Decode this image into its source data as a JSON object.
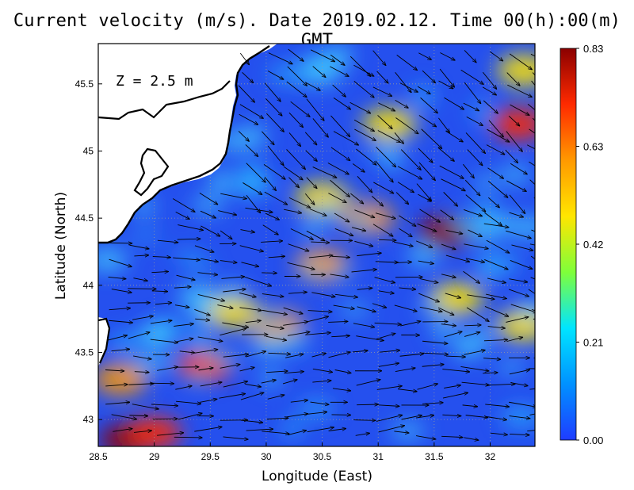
{
  "title": "Current velocity (m/s). Date 2019.02.12. Time 00(h):00(m) GMT",
  "depth_label": "Z = 2.5 m",
  "x_axis": {
    "label": "Longitude (East)",
    "ticks": [
      "28.5",
      "29",
      "29.5",
      "30",
      "30.5",
      "31",
      "31.5",
      "32"
    ]
  },
  "y_axis": {
    "label": "Latitude (North)",
    "ticks": [
      "43",
      "43.5",
      "44",
      "44.5",
      "45",
      "45.5"
    ]
  },
  "colorbar": {
    "ticks": [
      "0.83",
      "0.63",
      "0.42",
      "0.21",
      "0.00"
    ],
    "colors": [
      "#8b0000",
      "#ff2a00",
      "#ff9900",
      "#ffe600",
      "#7fff3a",
      "#00e5ff",
      "#0091ff",
      "#1f3cff"
    ]
  },
  "map_colors": {
    "land": "#ffffff",
    "coast": "#000000",
    "arrow": "#000000",
    "grid": "#9a9a9a"
  },
  "chart_data": {
    "type": "heatmap",
    "variable": "current velocity",
    "units": "m/s",
    "xlim": [
      28.5,
      32.4
    ],
    "ylim": [
      42.8,
      45.8
    ],
    "vmin": 0.0,
    "vmax": 0.83,
    "hotspots": [
      {
        "lon": 28.75,
        "lat": 42.85,
        "value": 0.8
      },
      {
        "lon": 29.0,
        "lat": 42.9,
        "value": 0.75
      },
      {
        "lon": 28.7,
        "lat": 43.3,
        "value": 0.55
      },
      {
        "lon": 29.45,
        "lat": 43.4,
        "value": 0.7
      },
      {
        "lon": 30.1,
        "lat": 43.7,
        "value": 0.6
      },
      {
        "lon": 30.5,
        "lat": 44.15,
        "value": 0.62
      },
      {
        "lon": 30.9,
        "lat": 44.5,
        "value": 0.55
      },
      {
        "lon": 31.6,
        "lat": 44.4,
        "value": 0.78
      },
      {
        "lon": 31.7,
        "lat": 43.9,
        "value": 0.5
      },
      {
        "lon": 32.25,
        "lat": 45.2,
        "value": 0.72
      },
      {
        "lon": 31.1,
        "lat": 45.2,
        "value": 0.5
      },
      {
        "lon": 32.3,
        "lat": 45.6,
        "value": 0.5
      },
      {
        "lon": 30.5,
        "lat": 44.65,
        "value": 0.45
      },
      {
        "lon": 29.7,
        "lat": 43.8,
        "value": 0.5
      },
      {
        "lon": 32.3,
        "lat": 43.7,
        "value": 0.5
      }
    ],
    "flow_regions": [
      {
        "region": "southwest",
        "direction": "east",
        "speed": "strong"
      },
      {
        "region": "central",
        "direction": "east-southeast",
        "speed": "moderate"
      },
      {
        "region": "north",
        "direction": "south-east",
        "speed": "moderate"
      },
      {
        "region": "southeast",
        "direction": "north",
        "speed": "weak"
      }
    ]
  }
}
